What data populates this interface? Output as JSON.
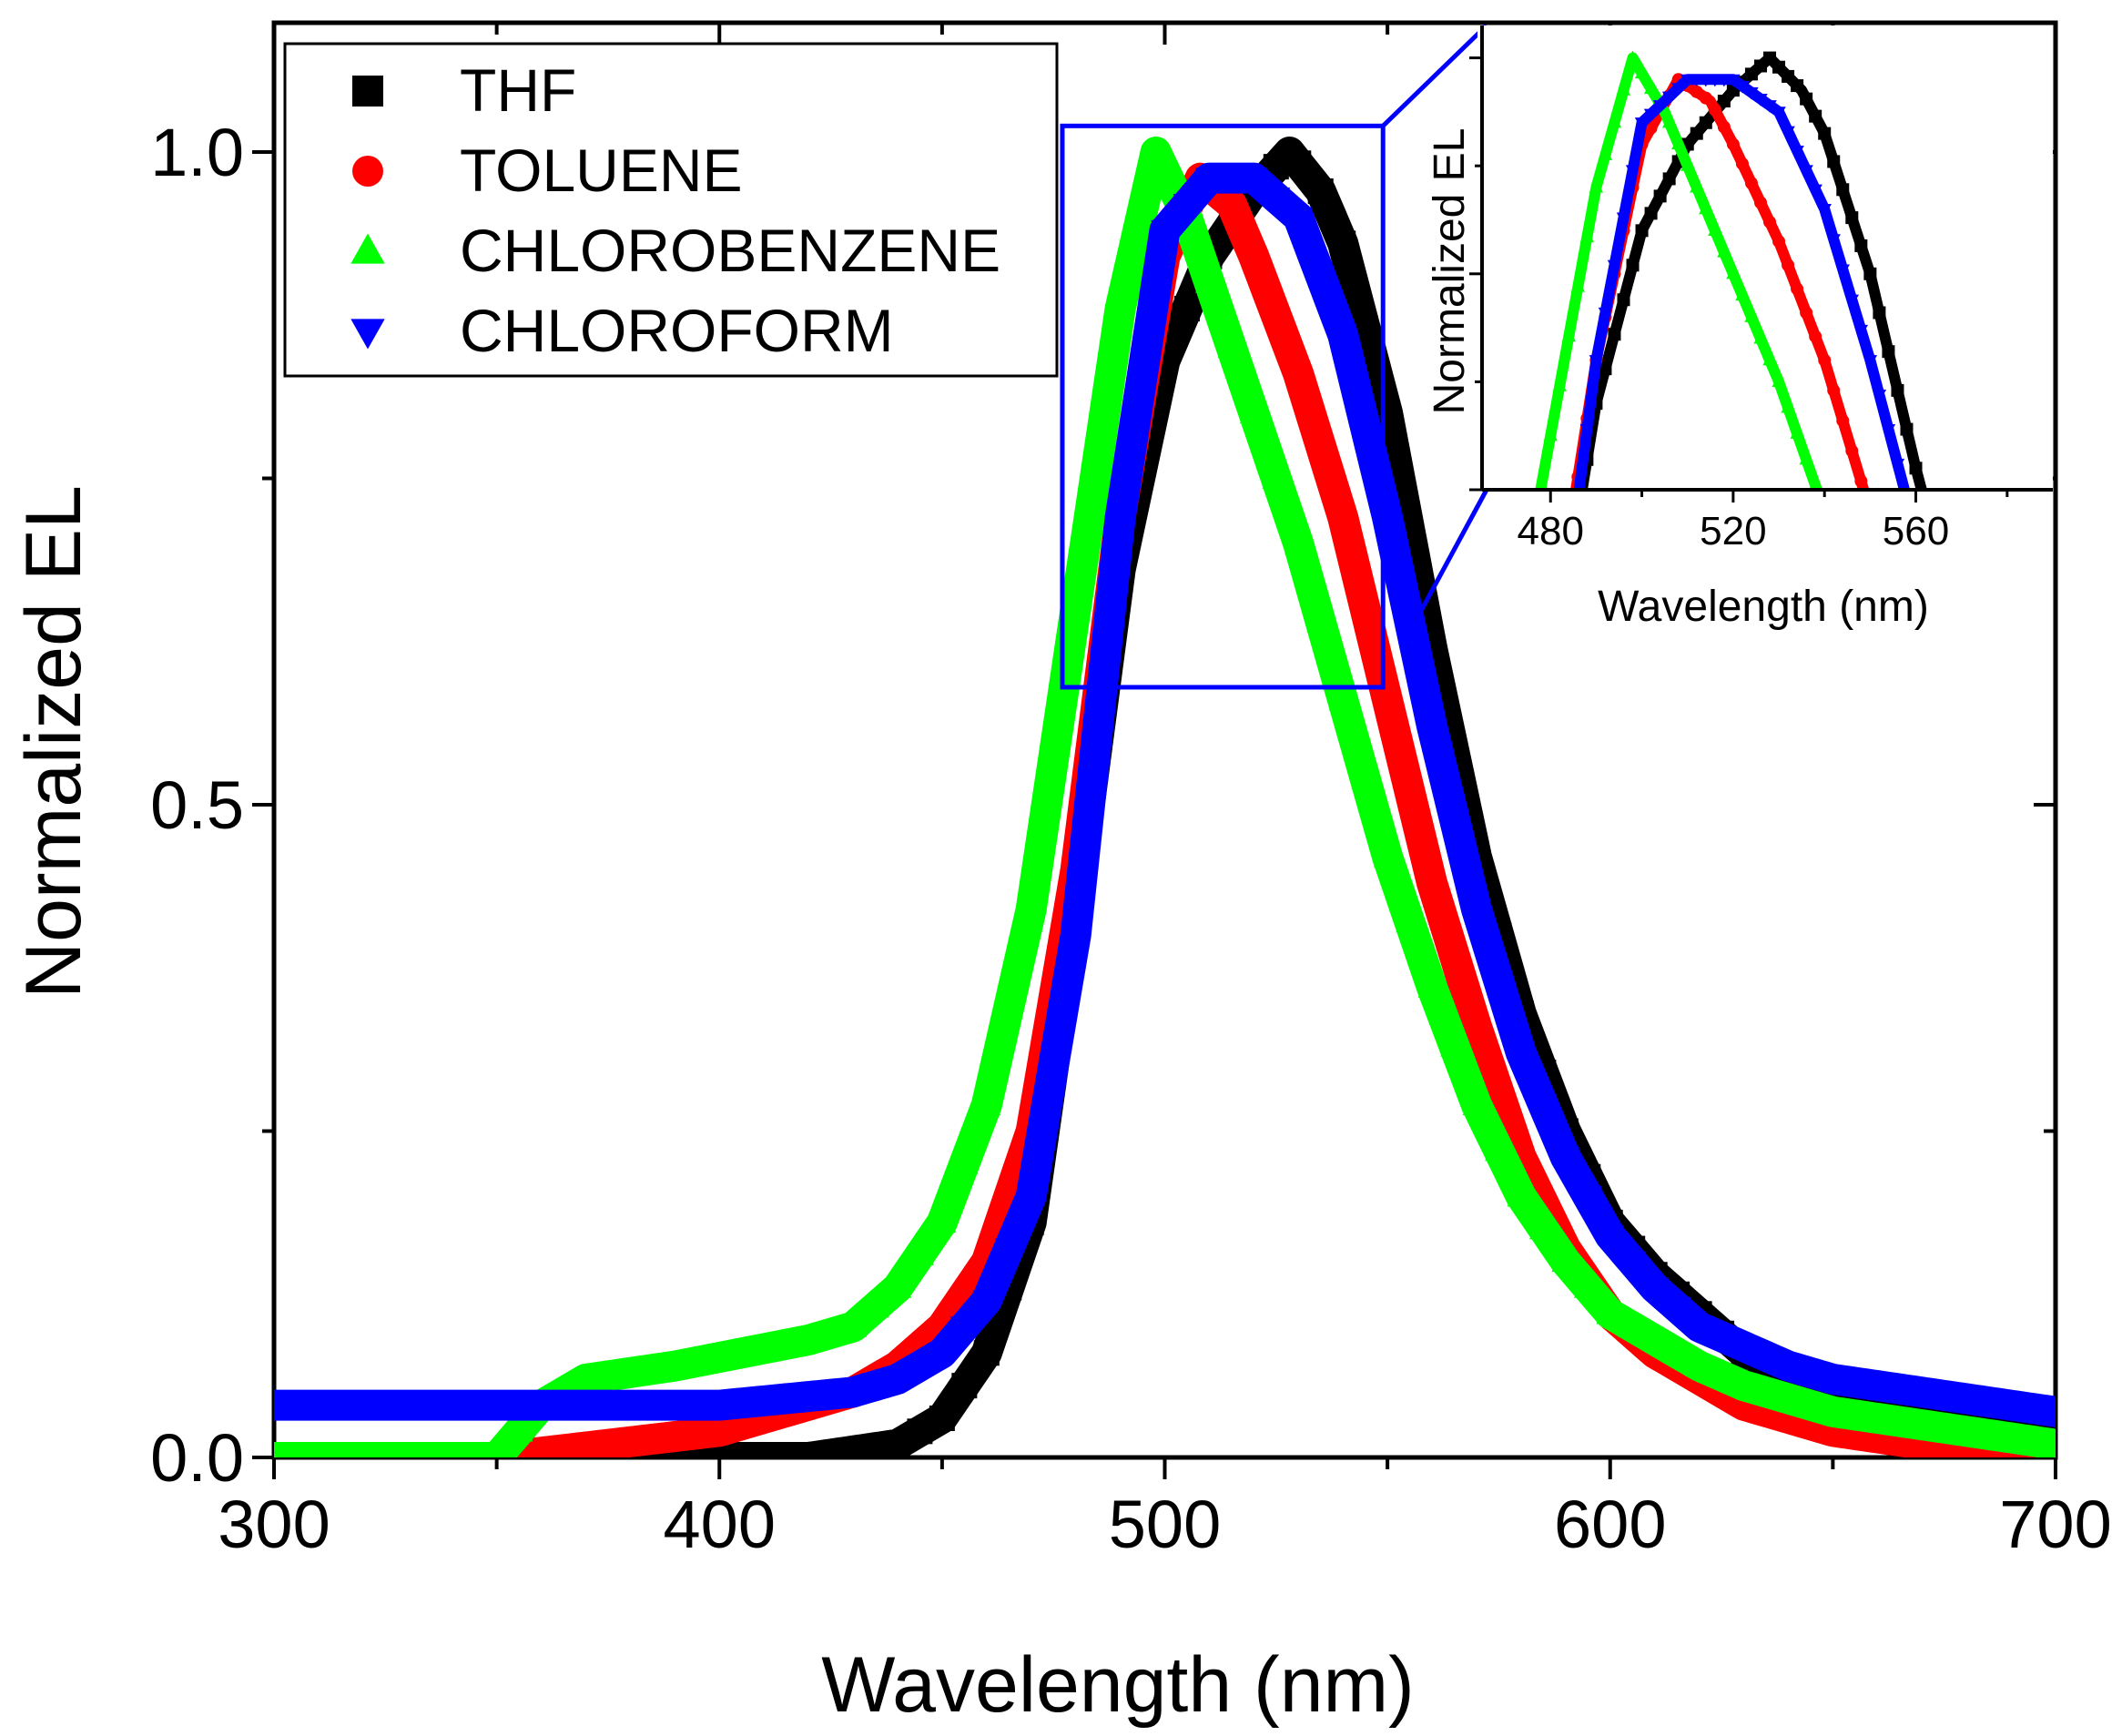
{
  "chart_data": {
    "type": "scatter",
    "xlabel": "Wavelength (nm)",
    "ylabel": "Normalized EL",
    "xlim": [
      300,
      700
    ],
    "ylim": [
      0,
      1.1
    ],
    "x_ticks": [
      "300",
      "400",
      "500",
      "600",
      "700"
    ],
    "y_ticks": [
      "0.0",
      "0.5",
      "1.0"
    ],
    "legend_position": "top-left",
    "grid": false,
    "series": [
      {
        "name": "THF",
        "marker": "square",
        "color": "#000000",
        "x": [
          300,
          420,
          440,
          450,
          460,
          470,
          480,
          490,
          500,
          510,
          520,
          528,
          535,
          540,
          550,
          560,
          570,
          580,
          590,
          600,
          610,
          620,
          630,
          640,
          650,
          660,
          670,
          680,
          690,
          700
        ],
        "values": [
          0.0,
          0.0,
          0.01,
          0.03,
          0.08,
          0.18,
          0.42,
          0.68,
          0.84,
          0.92,
          0.97,
          1.0,
          0.97,
          0.93,
          0.8,
          0.62,
          0.46,
          0.34,
          0.25,
          0.18,
          0.14,
          0.11,
          0.08,
          0.065,
          0.05,
          0.045,
          0.035,
          0.03,
          0.025,
          0.02
        ]
      },
      {
        "name": "TOLUENE",
        "marker": "circle",
        "color": "#ff0000",
        "x": [
          300,
          350,
          400,
          430,
          440,
          450,
          460,
          470,
          480,
          490,
          500,
          508,
          515,
          520,
          530,
          540,
          550,
          560,
          570,
          580,
          590,
          600,
          610,
          620,
          630,
          640,
          650,
          660,
          670,
          680,
          690,
          700
        ],
        "values": [
          0.0,
          0.0,
          0.02,
          0.05,
          0.07,
          0.1,
          0.15,
          0.25,
          0.45,
          0.72,
          0.92,
          0.98,
          0.96,
          0.92,
          0.83,
          0.72,
          0.58,
          0.44,
          0.33,
          0.23,
          0.16,
          0.11,
          0.08,
          0.06,
          0.04,
          0.03,
          0.02,
          0.015,
          0.01,
          0.005,
          0.003,
          0.002
        ]
      },
      {
        "name": "CHLOROBENZENE",
        "marker": "triangle-up",
        "color": "#00ff00",
        "x": [
          300,
          350,
          360,
          370,
          390,
          420,
          430,
          440,
          450,
          460,
          470,
          480,
          490,
          498,
          505,
          510,
          520,
          530,
          540,
          550,
          560,
          570,
          580,
          590,
          600,
          610,
          620,
          630,
          640,
          650,
          660,
          670,
          680,
          690,
          700
        ],
        "values": [
          0.0,
          0.0,
          0.04,
          0.06,
          0.07,
          0.09,
          0.1,
          0.13,
          0.18,
          0.27,
          0.42,
          0.65,
          0.88,
          1.0,
          0.95,
          0.9,
          0.8,
          0.7,
          0.58,
          0.46,
          0.36,
          0.27,
          0.2,
          0.15,
          0.11,
          0.09,
          0.07,
          0.055,
          0.045,
          0.035,
          0.03,
          0.025,
          0.02,
          0.015,
          0.01
        ]
      },
      {
        "name": "CHLOROFORM",
        "marker": "triangle-down",
        "color": "#0000ff",
        "x": [
          300,
          350,
          400,
          430,
          440,
          450,
          460,
          470,
          480,
          490,
          500,
          510,
          520,
          530,
          540,
          550,
          560,
          570,
          580,
          590,
          600,
          610,
          620,
          630,
          640,
          650,
          660,
          670,
          680,
          690,
          700
        ],
        "values": [
          0.04,
          0.04,
          0.04,
          0.05,
          0.06,
          0.08,
          0.12,
          0.2,
          0.4,
          0.72,
          0.94,
          0.98,
          0.98,
          0.95,
          0.86,
          0.72,
          0.56,
          0.42,
          0.31,
          0.23,
          0.17,
          0.13,
          0.1,
          0.085,
          0.07,
          0.06,
          0.055,
          0.05,
          0.045,
          0.04,
          0.035
        ]
      }
    ],
    "inset": {
      "xlabel": "Wavelength (nm)",
      "ylabel": "Normalized EL",
      "xlim": [
        465,
        590
      ],
      "ylim": [
        0.6,
        1.03
      ],
      "x_ticks": [
        "480",
        "520",
        "560"
      ],
      "zoom_region": {
        "xlim": [
          477,
          549
        ],
        "ylim": [
          0.59,
          1.02
        ]
      }
    }
  }
}
